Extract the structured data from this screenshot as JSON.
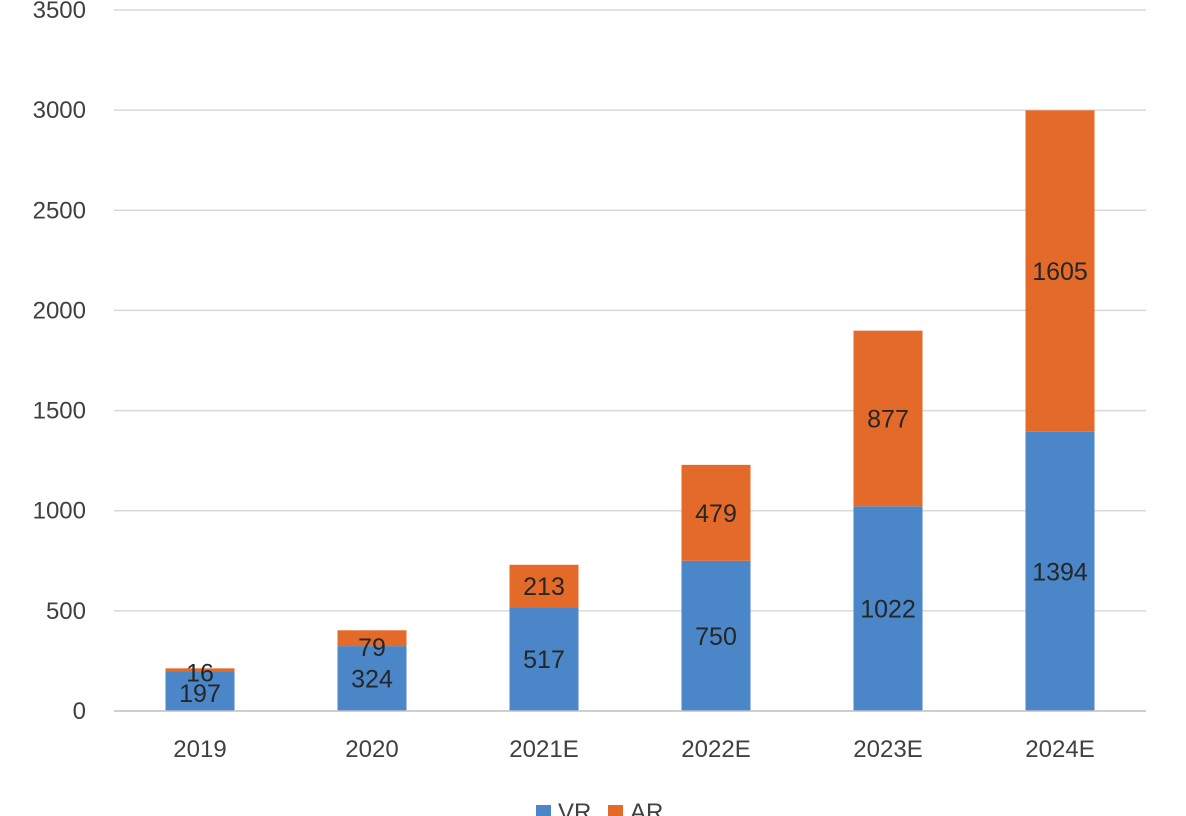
{
  "chart_data": {
    "type": "bar",
    "stacked": true,
    "categories": [
      "2019",
      "2020",
      "2021E",
      "2022E",
      "2023E",
      "2024E"
    ],
    "series": [
      {
        "name": "VR",
        "color": "#4a86c8",
        "values": [
          197,
          324,
          517,
          750,
          1022,
          1394
        ]
      },
      {
        "name": "AR",
        "color": "#e46a2a",
        "values": [
          16,
          79,
          213,
          479,
          877,
          1605
        ]
      }
    ],
    "title": "",
    "xlabel": "",
    "ylabel": "",
    "ylim": [
      0,
      3500
    ],
    "yticks": [
      "0",
      "500",
      "1000",
      "1500",
      "2000",
      "2500",
      "3000",
      "3500"
    ],
    "grid": true,
    "legend": "bottom"
  }
}
